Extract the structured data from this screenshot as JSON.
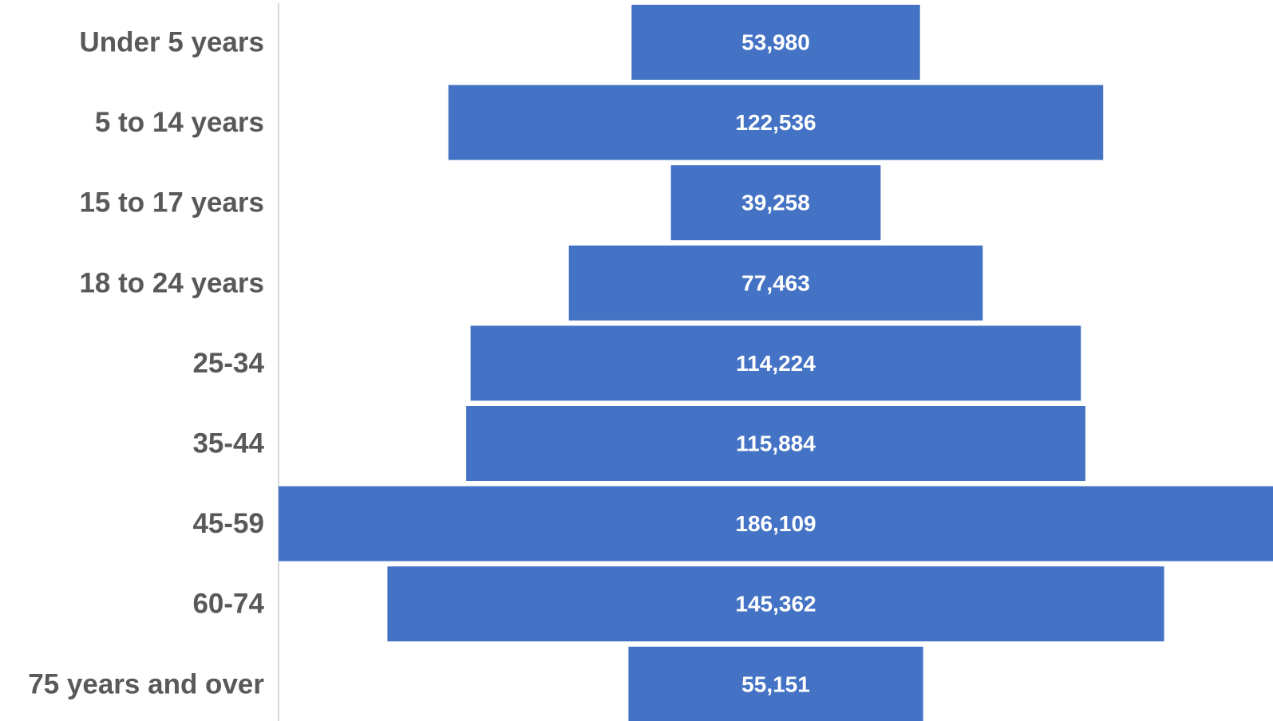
{
  "chart_data": {
    "type": "bar",
    "orientation": "horizontal",
    "alignment": "centered",
    "categories": [
      "Under 5 years",
      "5 to 14 years",
      "15 to 17 years",
      "18 to 24 years",
      "25-34",
      "35-44",
      "45-59",
      "60-74",
      "75 years and over"
    ],
    "values": [
      53980,
      122536,
      39258,
      77463,
      114224,
      115884,
      186109,
      145362,
      55151
    ],
    "data_labels": [
      "53,980",
      "122,536",
      "39,258",
      "77,463",
      "114,224",
      "115,884",
      "186,109",
      "145,362",
      "55,151"
    ],
    "title": "",
    "xlabel": "",
    "ylabel": "",
    "grid": false,
    "legend": "none",
    "colors": {
      "bar": "#4472C4",
      "category_text": "#595959",
      "data_label_text": "#FFFFFF",
      "axis_line": "#D9D9D9"
    }
  }
}
